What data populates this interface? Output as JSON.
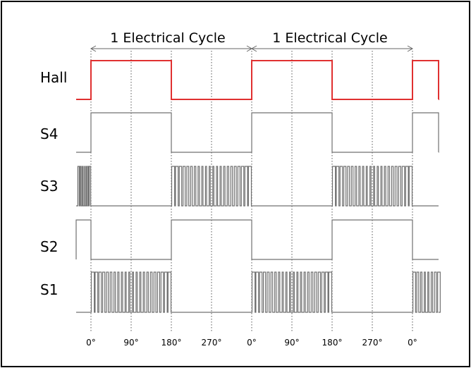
{
  "diagram": {
    "cycle_labels": [
      "1 Electrical Cycle",
      "1 Electrical Cycle"
    ],
    "signals": [
      {
        "label": "Hall",
        "color": "#e03030"
      },
      {
        "label": "S4",
        "color": "#707070"
      },
      {
        "label": "S3",
        "color": "#707070"
      },
      {
        "label": "S2",
        "color": "#707070"
      },
      {
        "label": "S1",
        "color": "#707070"
      }
    ],
    "angle_labels": [
      "0°",
      "90°",
      "180°",
      "270°",
      "0°",
      "90°",
      "180°",
      "270°",
      "0°"
    ]
  }
}
